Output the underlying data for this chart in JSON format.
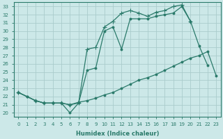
{
  "xlabel": "Humidex (Indice chaleur)",
  "ylabel": "",
  "bg_color": "#cce8e8",
  "line_color": "#2a7a6a",
  "grid_color": "#aacccc",
  "xlim": [
    -0.5,
    23.5
  ],
  "ylim": [
    19.5,
    33.5
  ],
  "yticks": [
    20,
    21,
    22,
    23,
    24,
    25,
    26,
    27,
    28,
    29,
    30,
    31,
    32,
    33
  ],
  "xticks": [
    0,
    1,
    2,
    3,
    4,
    5,
    6,
    7,
    8,
    9,
    10,
    11,
    12,
    13,
    14,
    15,
    16,
    17,
    18,
    19,
    20,
    21,
    22,
    23
  ],
  "series": [
    {
      "x": [
        0,
        1,
        2,
        3,
        4,
        5,
        6,
        7,
        8,
        9,
        10,
        11,
        12,
        13,
        14,
        15,
        16,
        17,
        18,
        19,
        20,
        21,
        22,
        23
      ],
      "y": [
        22.5,
        22.0,
        21.5,
        21.2,
        21.2,
        21.2,
        21.0,
        21.3,
        21.5,
        21.8,
        22.2,
        22.5,
        23.0,
        23.5,
        24.0,
        24.3,
        24.7,
        25.2,
        25.7,
        26.2,
        26.7,
        27.0,
        27.5,
        24.5
      ],
      "marker": "o",
      "markersize": 2.0
    },
    {
      "x": [
        0,
        1,
        2,
        3,
        4,
        5,
        6,
        7,
        8,
        9,
        10,
        11,
        12,
        13,
        14,
        15,
        16,
        17,
        18,
        19,
        20,
        21,
        22
      ],
      "y": [
        22.5,
        22.0,
        21.5,
        21.2,
        21.2,
        21.2,
        20.0,
        21.2,
        25.2,
        25.5,
        30.0,
        30.5,
        27.8,
        31.5,
        31.5,
        31.5,
        31.8,
        32.0,
        32.2,
        33.0,
        31.2,
        28.2,
        25.8
      ],
      "marker": "o",
      "markersize": 2.0
    },
    {
      "x": [
        0,
        2,
        3,
        4,
        5,
        6,
        7,
        8,
        9,
        10,
        11,
        12,
        13,
        14,
        15,
        16,
        17,
        18,
        19,
        20
      ],
      "y": [
        22.5,
        21.5,
        21.2,
        21.2,
        21.2,
        21.0,
        21.2,
        27.8,
        28.0,
        30.5,
        31.2,
        32.2,
        32.5,
        32.2,
        31.8,
        32.3,
        32.5,
        33.0,
        33.2,
        31.2
      ],
      "marker": "+",
      "markersize": 4.0
    }
  ]
}
